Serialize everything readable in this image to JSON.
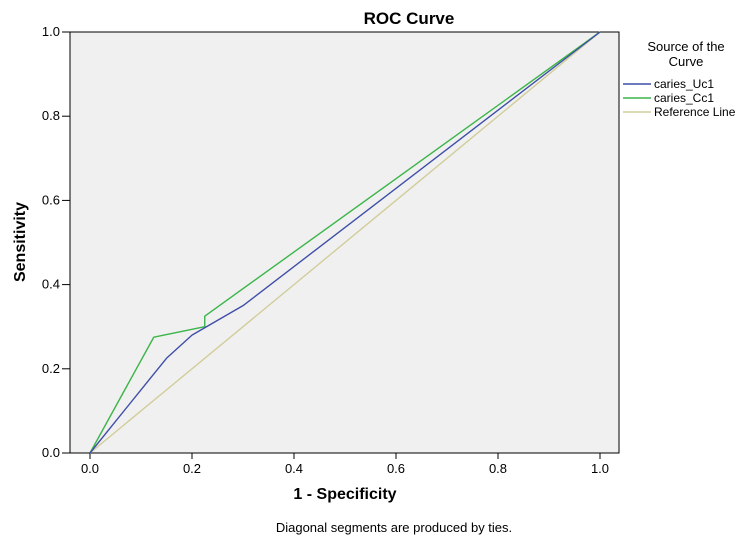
{
  "chart_data": {
    "type": "line",
    "title": "ROC Curve",
    "xlabel": "1 - Specificity",
    "ylabel": "Sensitivity",
    "xlim": [
      0,
      1
    ],
    "ylim": [
      0,
      1
    ],
    "x_ticks": [
      "0.0",
      "0.2",
      "0.4",
      "0.6",
      "0.8",
      "1.0"
    ],
    "y_ticks": [
      "0.0",
      "0.2",
      "0.4",
      "0.6",
      "0.8",
      "1.0"
    ],
    "grid": false,
    "background_color": "#f0f0f0",
    "legend": {
      "title_lines": [
        "Source of the",
        "Curve"
      ],
      "placement": "right"
    },
    "footnote": "Diagonal segments are produced by ties.",
    "series": [
      {
        "name": "caries_Uc1",
        "color": "#3f4fa8",
        "points": [
          [
            0,
            0
          ],
          [
            0.15,
            0.225
          ],
          [
            0.2,
            0.28
          ],
          [
            0.3,
            0.35
          ],
          [
            1,
            1
          ]
        ]
      },
      {
        "name": "caries_Cc1",
        "color": "#3cb54a",
        "points": [
          [
            0,
            0
          ],
          [
            0.125,
            0.275
          ],
          [
            0.225,
            0.3
          ],
          [
            0.225,
            0.325
          ],
          [
            1,
            1
          ]
        ]
      },
      {
        "name": "Reference Line",
        "color": "#d2cd9a",
        "points": [
          [
            0,
            0
          ],
          [
            1,
            1
          ]
        ]
      }
    ]
  }
}
